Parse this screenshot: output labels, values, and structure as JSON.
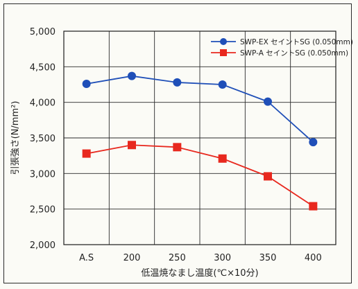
{
  "chart_data": {
    "type": "line",
    "xlabel": "低温焼なまし温度(℃×10分)",
    "ylabel": "引張強さ(N/mm²)",
    "categories": [
      "A.S",
      "200",
      "250",
      "300",
      "350",
      "400"
    ],
    "ylim": [
      2000,
      5000
    ],
    "yticks": [
      "2,000",
      "2,500",
      "3,000",
      "3,500",
      "4,000",
      "4,500",
      "5,000"
    ],
    "ytick_values": [
      2000,
      2500,
      3000,
      3500,
      4000,
      4500,
      5000
    ],
    "grid": true,
    "legend_position": "top-right",
    "series": [
      {
        "name": "SWP-EX セイントSG (0.050mm)",
        "marker": "circle",
        "color": "#1f4fb8",
        "values": [
          4260,
          4370,
          4280,
          4250,
          4010,
          3440
        ]
      },
      {
        "name": "SWP-A セイントSG (0.050mm)",
        "marker": "square",
        "color": "#e8281e",
        "values": [
          3280,
          3400,
          3370,
          3210,
          2960,
          2540
        ]
      }
    ]
  }
}
